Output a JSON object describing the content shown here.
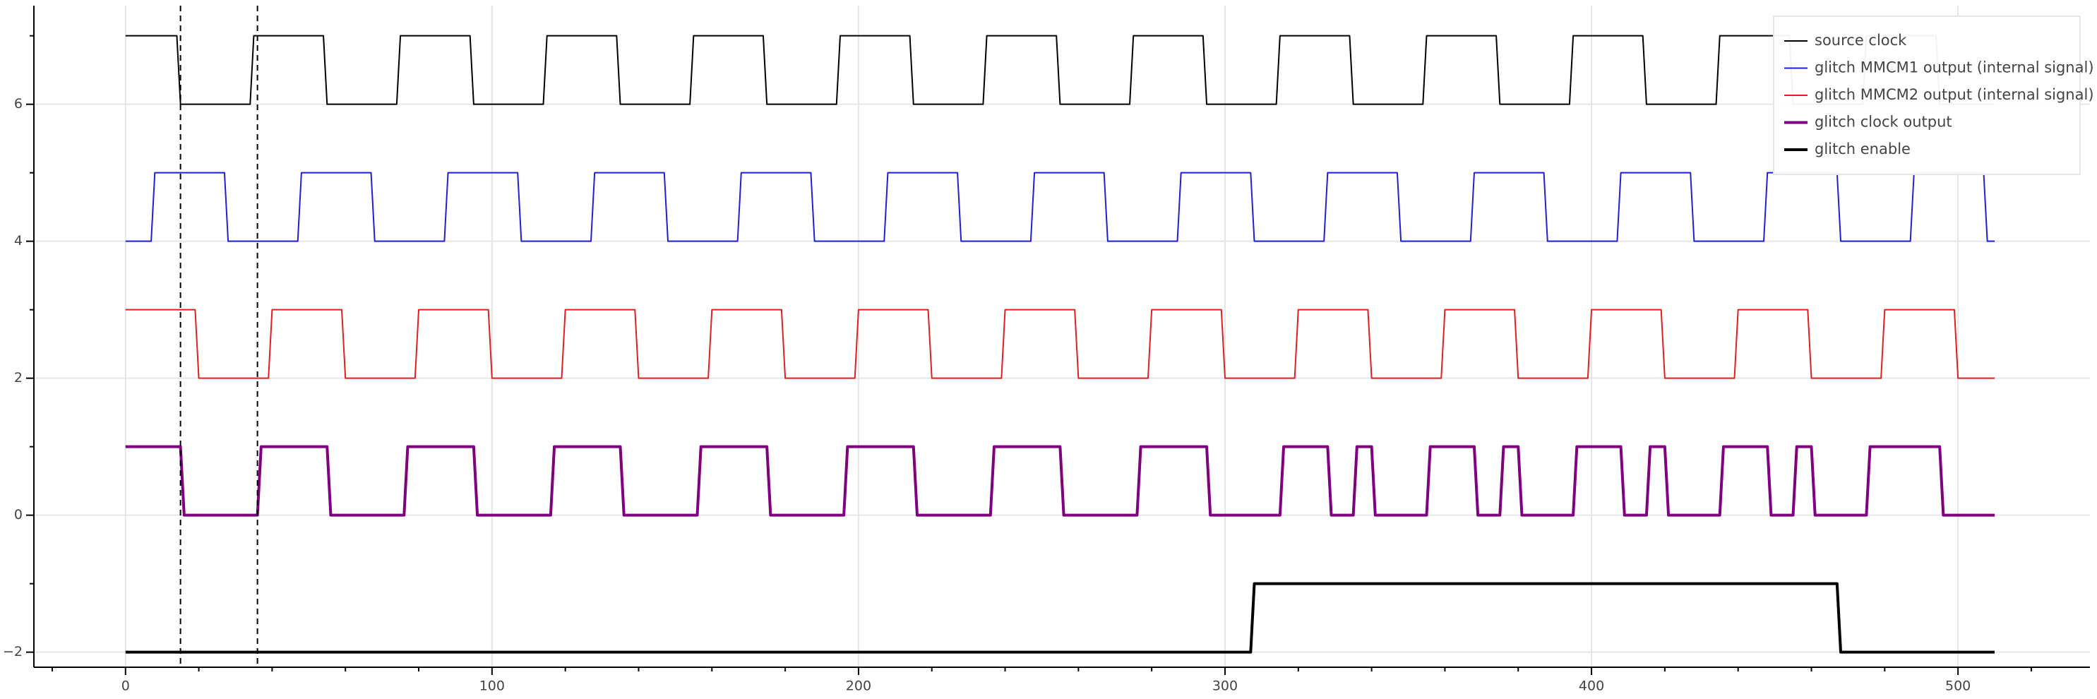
{
  "chart_data": {
    "type": "line",
    "xlim": [
      -25,
      536
    ],
    "ylim": [
      -2.22,
      7.44
    ],
    "xticks": [
      0,
      100,
      200,
      300,
      400,
      500
    ],
    "xminorticks": [
      -20,
      20,
      40,
      60,
      80,
      120,
      140,
      160,
      180,
      220,
      240,
      260,
      280,
      320,
      340,
      360,
      380,
      420,
      440,
      460,
      480,
      520
    ],
    "yticks": [
      {
        "value": -2,
        "label": "−2"
      },
      0,
      2,
      4,
      6
    ],
    "yminorticks": [
      -1,
      1,
      3,
      5,
      7
    ],
    "grid": true,
    "legend": "top_right",
    "vlines": [
      15,
      36
    ],
    "series": [
      {
        "name": "source clock",
        "color": "#000000",
        "width": 2,
        "x": [
          0,
          14,
          15,
          34,
          35,
          54,
          55,
          74,
          75,
          94,
          95,
          114,
          115,
          134,
          135,
          154,
          155,
          174,
          175,
          194,
          195,
          214,
          215,
          234,
          235,
          254,
          255,
          274,
          275,
          294,
          295,
          314,
          315,
          334,
          335,
          354,
          355,
          374,
          375,
          394,
          395,
          414,
          415,
          434,
          435,
          454,
          455,
          474,
          475,
          494,
          495,
          510
        ],
        "values": [
          7,
          7,
          6,
          6,
          7,
          7,
          6,
          6,
          7,
          7,
          6,
          6,
          7,
          7,
          6,
          6,
          7,
          7,
          6,
          6,
          7,
          7,
          6,
          6,
          7,
          7,
          6,
          6,
          7,
          7,
          6,
          6,
          7,
          7,
          6,
          6,
          7,
          7,
          6,
          6,
          7,
          7,
          6,
          6,
          7,
          7,
          6,
          6,
          7,
          7,
          6,
          6
        ]
      },
      {
        "name": "glitch MMCM1 output (internal signal)",
        "color": "#1f1fd6",
        "width": 2,
        "x": [
          0,
          7,
          8,
          27,
          28,
          47,
          48,
          67,
          68,
          87,
          88,
          107,
          108,
          127,
          128,
          147,
          148,
          167,
          168,
          187,
          188,
          207,
          208,
          227,
          228,
          247,
          248,
          267,
          268,
          287,
          288,
          307,
          308,
          327,
          328,
          347,
          348,
          367,
          368,
          387,
          388,
          407,
          408,
          427,
          428,
          447,
          448,
          467,
          468,
          487,
          488,
          507,
          508,
          510
        ],
        "values": [
          4,
          4,
          5,
          5,
          4,
          4,
          5,
          5,
          4,
          4,
          5,
          5,
          4,
          4,
          5,
          5,
          4,
          4,
          5,
          5,
          4,
          4,
          5,
          5,
          4,
          4,
          5,
          5,
          4,
          4,
          5,
          5,
          4,
          4,
          5,
          5,
          4,
          4,
          5,
          5,
          4,
          4,
          5,
          5,
          4,
          4,
          5,
          5,
          4,
          4,
          5,
          5,
          4,
          4
        ]
      },
      {
        "name": "glitch MMCM2 output (internal signal)",
        "color": "#e0201c",
        "width": 2,
        "x": [
          0,
          19,
          20,
          39,
          40,
          59,
          60,
          79,
          80,
          99,
          100,
          119,
          120,
          139,
          140,
          159,
          160,
          179,
          180,
          199,
          200,
          219,
          220,
          239,
          240,
          259,
          260,
          279,
          280,
          299,
          300,
          319,
          320,
          339,
          340,
          359,
          360,
          379,
          380,
          399,
          400,
          419,
          420,
          439,
          440,
          459,
          460,
          479,
          480,
          499,
          500,
          510
        ],
        "values": [
          3,
          3,
          2,
          2,
          3,
          3,
          2,
          2,
          3,
          3,
          2,
          2,
          3,
          3,
          2,
          2,
          3,
          3,
          2,
          2,
          3,
          3,
          2,
          2,
          3,
          3,
          2,
          2,
          3,
          3,
          2,
          2,
          3,
          3,
          2,
          2,
          3,
          3,
          2,
          2,
          3,
          3,
          2,
          2,
          3,
          3,
          2,
          2,
          3,
          3,
          2,
          2
        ]
      },
      {
        "name": "glitch clock output",
        "color": "#800080",
        "width": 4,
        "x": [
          0,
          15,
          16,
          36,
          37,
          55,
          56,
          76,
          77,
          95,
          96,
          116,
          117,
          135,
          136,
          156,
          157,
          175,
          176,
          196,
          197,
          215,
          216,
          236,
          237,
          255,
          256,
          276,
          277,
          295,
          296,
          315,
          316,
          328,
          329,
          335,
          336,
          340,
          341,
          355,
          356,
          368,
          369,
          375,
          376,
          380,
          381,
          395,
          396,
          408,
          409,
          415,
          416,
          420,
          421,
          435,
          436,
          448,
          449,
          455,
          456,
          460,
          461,
          475,
          476,
          495,
          496,
          510
        ],
        "values": [
          1,
          1,
          0,
          0,
          1,
          1,
          0,
          0,
          1,
          1,
          0,
          0,
          1,
          1,
          0,
          0,
          1,
          1,
          0,
          0,
          1,
          1,
          0,
          0,
          1,
          1,
          0,
          0,
          1,
          1,
          0,
          0,
          1,
          1,
          0,
          0,
          1,
          1,
          0,
          0,
          1,
          1,
          0,
          0,
          1,
          1,
          0,
          0,
          1,
          1,
          0,
          0,
          1,
          1,
          0,
          0,
          1,
          1,
          0,
          0,
          1,
          1,
          0,
          0,
          1,
          1,
          0,
          0
        ]
      },
      {
        "name": "glitch enable",
        "color": "#000000",
        "width": 4,
        "x": [
          0,
          307,
          308,
          467,
          468,
          510
        ],
        "values": [
          -2,
          -2,
          -1,
          -1,
          -2,
          -2
        ]
      }
    ]
  }
}
